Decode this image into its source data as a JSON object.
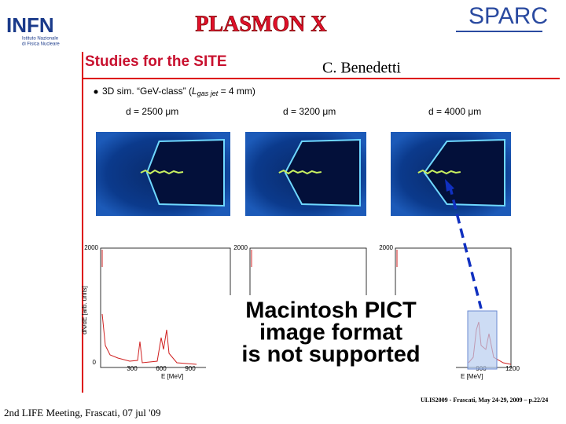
{
  "header": {
    "logo_left": "INFN",
    "logo_left_sub_1": "Istituto Nazionale",
    "logo_left_sub_2": "di Fisica Nucleare",
    "title": "PLASMON X",
    "logo_right": "SPARC"
  },
  "slide": {
    "title": "Studies for the SITE",
    "author": "C. Benedetti",
    "bullet": {
      "text": "3D sim. “GeV-class” (",
      "var": "L",
      "sub": "gas jet",
      "rest": " = 4 mm)"
    },
    "panels": [
      "d = 2500 μm",
      "d = 3200 μm",
      "d = 4000 μm"
    ],
    "plot": {
      "y_top": "2000",
      "y_zero": "0",
      "x_ticks": [
        "300",
        "600",
        "900"
      ],
      "x_right": [
        "900",
        "1200"
      ],
      "x_label": "E [MeV]",
      "y_label": "dN/dE [arb. units]"
    },
    "placeholder": [
      "Macintosh PICT",
      "image format",
      "is not supported"
    ],
    "citation": "ULIS2009 - Frascati, May 24-29, 2009 – p.22/24"
  },
  "footer": {
    "text": "2nd LIFE Meeting, Frascati, 07 jul '09"
  }
}
